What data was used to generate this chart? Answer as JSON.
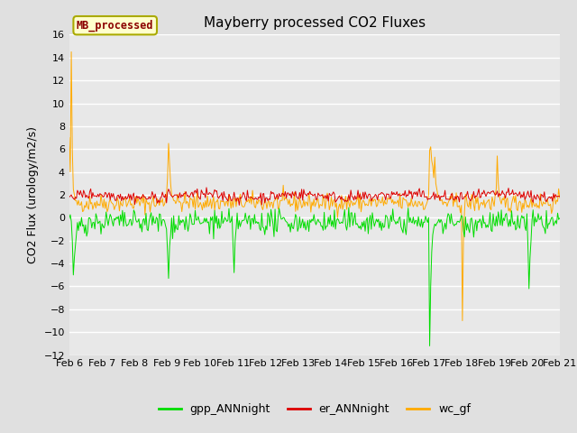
{
  "title": "Mayberry processed CO2 Fluxes",
  "ylabel": "CO2 Flux (urology/m2/s)",
  "ylim": [
    -12,
    16
  ],
  "yticks": [
    -12,
    -10,
    -8,
    -6,
    -4,
    -2,
    0,
    2,
    4,
    6,
    8,
    10,
    12,
    14,
    16
  ],
  "x_tick_labels": [
    "Feb 6",
    "Feb 7",
    "Feb 8",
    "Feb 9",
    "Feb 10",
    "Feb 11",
    "Feb 12",
    "Feb 13",
    "Feb 14",
    "Feb 15",
    "Feb 16",
    "Feb 17",
    "Feb 18",
    "Feb 19",
    "Feb 20",
    "Feb 21"
  ],
  "gpp_color": "#00dd00",
  "er_color": "#dd0000",
  "wc_color": "#ffaa00",
  "legend_items": [
    "gpp_ANNnight",
    "er_ANNnight",
    "wc_gf"
  ],
  "annotation_text": "MB_processed",
  "annotation_color": "#8b0000",
  "annotation_bg": "#ffffcc",
  "annotation_border": "#aaaa00",
  "bg_color": "#e0e0e0",
  "plot_bg": "#e8e8e8",
  "grid_color": "#ffffff",
  "n_points": 480,
  "title_fontsize": 11,
  "tick_fontsize": 8,
  "ylabel_fontsize": 9
}
